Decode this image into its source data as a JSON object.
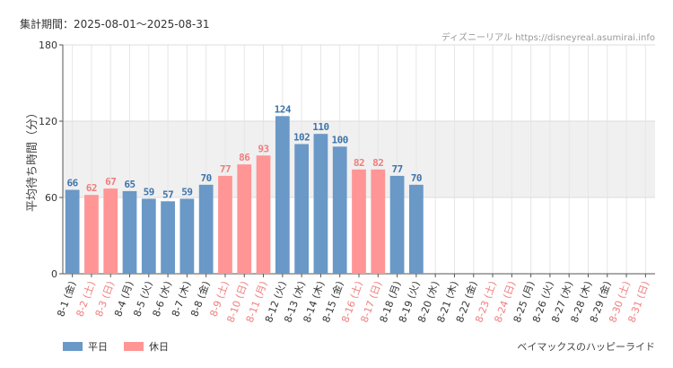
{
  "header": {
    "period_label": "集計期間：",
    "period_range": "2025-08-01〜2025-08-31",
    "credit": "ディズニーリアル https://disneyreal.asumirai.info"
  },
  "footer": {
    "attraction": "ベイマックスのハッピーライド"
  },
  "legend": {
    "weekday": "平日",
    "holiday": "休日"
  },
  "colors": {
    "weekday": "#6a98c7",
    "holiday": "#ff9595",
    "weekday_label": "#3f74aa",
    "holiday_label": "#f07d7d",
    "band": "#f0f0f0"
  },
  "chart_data": {
    "type": "bar",
    "ylabel": "平均待ち時間（分）",
    "ylim": [
      0,
      180
    ],
    "yticks": [
      0,
      60,
      120,
      180
    ],
    "shaded_band": [
      60,
      120
    ],
    "categories": [
      "8-1 (金)",
      "8-2 (土)",
      "8-3 (日)",
      "8-4 (月)",
      "8-5 (火)",
      "8-6 (水)",
      "8-7 (木)",
      "8-8 (金)",
      "8-9 (土)",
      "8-10 (日)",
      "8-11 (月)",
      "8-12 (火)",
      "8-13 (水)",
      "8-14 (木)",
      "8-15 (金)",
      "8-16 (土)",
      "8-17 (日)",
      "8-18 (月)",
      "8-19 (火)",
      "8-20 (水)",
      "8-21 (木)",
      "8-22 (金)",
      "8-23 (土)",
      "8-24 (日)",
      "8-25 (月)",
      "8-26 (火)",
      "8-27 (水)",
      "8-28 (木)",
      "8-29 (金)",
      "8-30 (土)",
      "8-31 (日)"
    ],
    "day_type": [
      "weekday",
      "holiday",
      "holiday",
      "weekday",
      "weekday",
      "weekday",
      "weekday",
      "weekday",
      "holiday",
      "holiday",
      "holiday",
      "weekday",
      "weekday",
      "weekday",
      "weekday",
      "holiday",
      "holiday",
      "weekday",
      "weekday",
      "weekday",
      "weekday",
      "weekday",
      "holiday",
      "holiday",
      "weekday",
      "weekday",
      "weekday",
      "weekday",
      "weekday",
      "holiday",
      "holiday"
    ],
    "values": [
      66,
      62,
      67,
      65,
      59,
      57,
      59,
      70,
      77,
      86,
      93,
      124,
      102,
      110,
      100,
      82,
      82,
      77,
      70,
      null,
      null,
      null,
      null,
      null,
      null,
      null,
      null,
      null,
      null,
      null,
      null
    ]
  }
}
